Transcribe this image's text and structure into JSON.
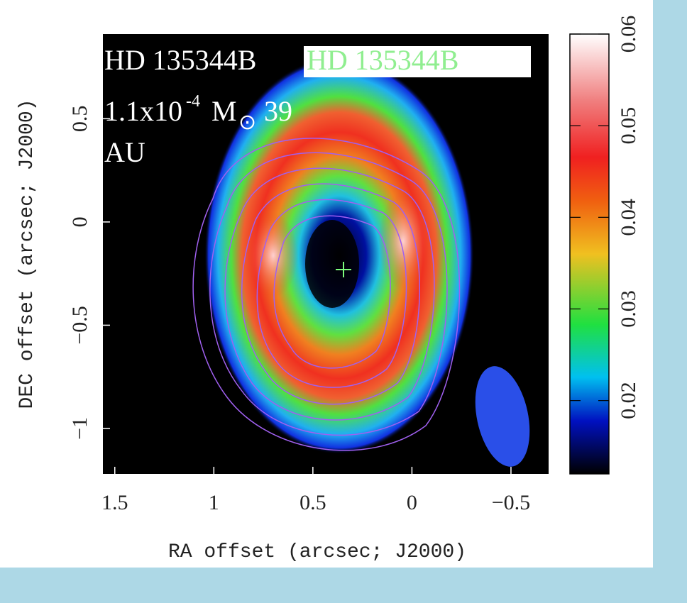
{
  "chart_data": {
    "type": "image",
    "xlabel": "RA offset (arcsec; J2000)",
    "ylabel": "DEC offset (arcsec; J2000)",
    "xlim": [
      1.56,
      -0.69
    ],
    "ylim": [
      -1.22,
      0.91
    ],
    "xticks": [
      1.5,
      1,
      0.5,
      0,
      {
        "value": -0.5,
        "label": "−0.5"
      }
    ],
    "yticks": [
      {
        "value": -1,
        "label": "−1"
      },
      {
        "value": -0.5,
        "label": "−0.5"
      },
      0,
      0.5
    ],
    "colorbar": {
      "lim": [
        0.012,
        0.06
      ],
      "ticks": [
        0.02,
        0.03,
        0.04,
        0.05,
        0.06
      ]
    },
    "annotations": {
      "name": "HD 135344B",
      "name_boxed": "HD 135344B",
      "mass": "1.1x10",
      "mass_exp": "-4",
      "mass_unit": "M",
      "sun": "⊙",
      "radius": "39",
      "radius_unit": "AU"
    }
  }
}
